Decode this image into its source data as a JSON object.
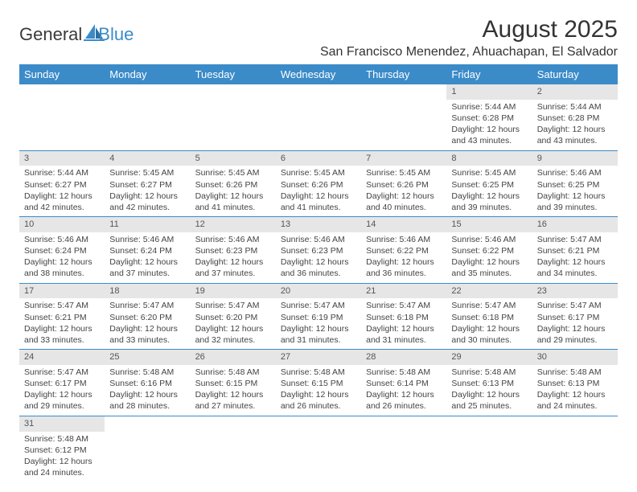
{
  "logo": {
    "text1": "General",
    "text2": "Blue",
    "accent_color": "#3b8bc9"
  },
  "title": "August 2025",
  "location": "San Francisco Menendez, Ahuachapan, El Salvador",
  "header_bg": "#3b8bc9",
  "daynum_bg": "#e6e6e6",
  "days_of_week": [
    "Sunday",
    "Monday",
    "Tuesday",
    "Wednesday",
    "Thursday",
    "Friday",
    "Saturday"
  ],
  "weeks": [
    [
      null,
      null,
      null,
      null,
      null,
      {
        "n": "1",
        "sr": "5:44 AM",
        "ss": "6:28 PM",
        "dl": "12 hours and 43 minutes."
      },
      {
        "n": "2",
        "sr": "5:44 AM",
        "ss": "6:28 PM",
        "dl": "12 hours and 43 minutes."
      }
    ],
    [
      {
        "n": "3",
        "sr": "5:44 AM",
        "ss": "6:27 PM",
        "dl": "12 hours and 42 minutes."
      },
      {
        "n": "4",
        "sr": "5:45 AM",
        "ss": "6:27 PM",
        "dl": "12 hours and 42 minutes."
      },
      {
        "n": "5",
        "sr": "5:45 AM",
        "ss": "6:26 PM",
        "dl": "12 hours and 41 minutes."
      },
      {
        "n": "6",
        "sr": "5:45 AM",
        "ss": "6:26 PM",
        "dl": "12 hours and 41 minutes."
      },
      {
        "n": "7",
        "sr": "5:45 AM",
        "ss": "6:26 PM",
        "dl": "12 hours and 40 minutes."
      },
      {
        "n": "8",
        "sr": "5:45 AM",
        "ss": "6:25 PM",
        "dl": "12 hours and 39 minutes."
      },
      {
        "n": "9",
        "sr": "5:46 AM",
        "ss": "6:25 PM",
        "dl": "12 hours and 39 minutes."
      }
    ],
    [
      {
        "n": "10",
        "sr": "5:46 AM",
        "ss": "6:24 PM",
        "dl": "12 hours and 38 minutes."
      },
      {
        "n": "11",
        "sr": "5:46 AM",
        "ss": "6:24 PM",
        "dl": "12 hours and 37 minutes."
      },
      {
        "n": "12",
        "sr": "5:46 AM",
        "ss": "6:23 PM",
        "dl": "12 hours and 37 minutes."
      },
      {
        "n": "13",
        "sr": "5:46 AM",
        "ss": "6:23 PM",
        "dl": "12 hours and 36 minutes."
      },
      {
        "n": "14",
        "sr": "5:46 AM",
        "ss": "6:22 PM",
        "dl": "12 hours and 36 minutes."
      },
      {
        "n": "15",
        "sr": "5:46 AM",
        "ss": "6:22 PM",
        "dl": "12 hours and 35 minutes."
      },
      {
        "n": "16",
        "sr": "5:47 AM",
        "ss": "6:21 PM",
        "dl": "12 hours and 34 minutes."
      }
    ],
    [
      {
        "n": "17",
        "sr": "5:47 AM",
        "ss": "6:21 PM",
        "dl": "12 hours and 33 minutes."
      },
      {
        "n": "18",
        "sr": "5:47 AM",
        "ss": "6:20 PM",
        "dl": "12 hours and 33 minutes."
      },
      {
        "n": "19",
        "sr": "5:47 AM",
        "ss": "6:20 PM",
        "dl": "12 hours and 32 minutes."
      },
      {
        "n": "20",
        "sr": "5:47 AM",
        "ss": "6:19 PM",
        "dl": "12 hours and 31 minutes."
      },
      {
        "n": "21",
        "sr": "5:47 AM",
        "ss": "6:18 PM",
        "dl": "12 hours and 31 minutes."
      },
      {
        "n": "22",
        "sr": "5:47 AM",
        "ss": "6:18 PM",
        "dl": "12 hours and 30 minutes."
      },
      {
        "n": "23",
        "sr": "5:47 AM",
        "ss": "6:17 PM",
        "dl": "12 hours and 29 minutes."
      }
    ],
    [
      {
        "n": "24",
        "sr": "5:47 AM",
        "ss": "6:17 PM",
        "dl": "12 hours and 29 minutes."
      },
      {
        "n": "25",
        "sr": "5:48 AM",
        "ss": "6:16 PM",
        "dl": "12 hours and 28 minutes."
      },
      {
        "n": "26",
        "sr": "5:48 AM",
        "ss": "6:15 PM",
        "dl": "12 hours and 27 minutes."
      },
      {
        "n": "27",
        "sr": "5:48 AM",
        "ss": "6:15 PM",
        "dl": "12 hours and 26 minutes."
      },
      {
        "n": "28",
        "sr": "5:48 AM",
        "ss": "6:14 PM",
        "dl": "12 hours and 26 minutes."
      },
      {
        "n": "29",
        "sr": "5:48 AM",
        "ss": "6:13 PM",
        "dl": "12 hours and 25 minutes."
      },
      {
        "n": "30",
        "sr": "5:48 AM",
        "ss": "6:13 PM",
        "dl": "12 hours and 24 minutes."
      }
    ],
    [
      {
        "n": "31",
        "sr": "5:48 AM",
        "ss": "6:12 PM",
        "dl": "12 hours and 24 minutes."
      },
      null,
      null,
      null,
      null,
      null,
      null
    ]
  ],
  "labels": {
    "sunrise": "Sunrise: ",
    "sunset": "Sunset: ",
    "daylight": "Daylight: "
  }
}
